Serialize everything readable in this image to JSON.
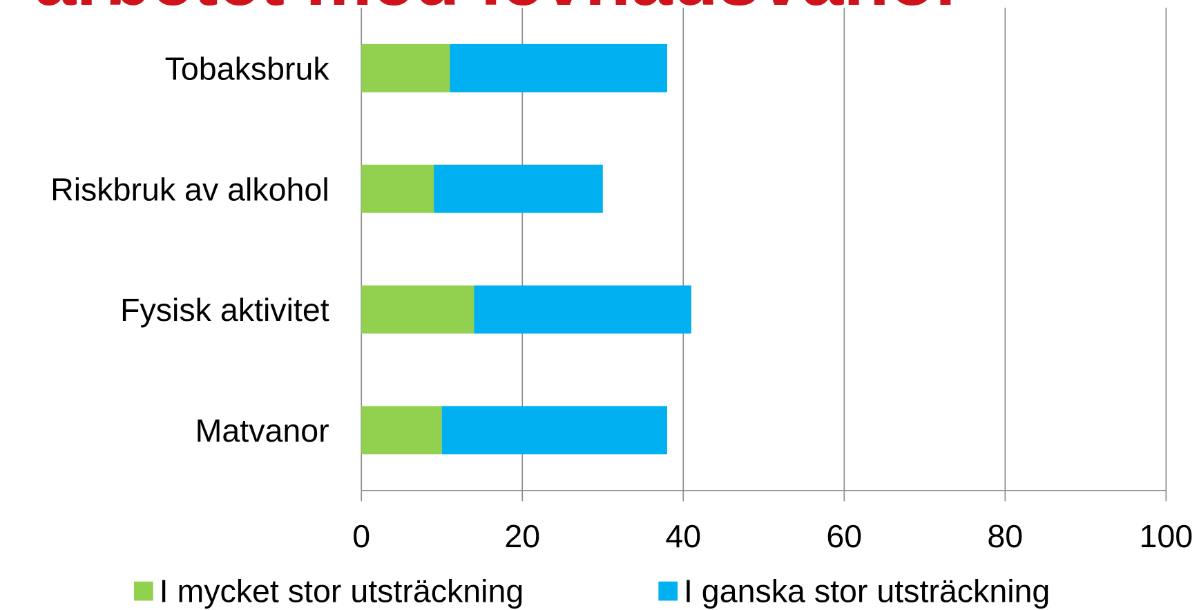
{
  "chart_data": {
    "type": "stacked-bar-horizontal",
    "title": "arbetet med levnadsvanor",
    "categories": [
      "Tobaksbruk",
      "Riskbruk av alkohol",
      "Fysisk aktivitet",
      "Matvanor"
    ],
    "series": [
      {
        "name": "I mycket stor utsträckning",
        "color": "#92d050",
        "values": [
          11,
          9,
          14,
          10
        ]
      },
      {
        "name": "I ganska stor utsträckning",
        "color": "#00b0f0",
        "values": [
          27,
          21,
          27,
          28
        ]
      }
    ],
    "xlim": [
      0,
      100
    ],
    "xticks": [
      0,
      20,
      40,
      60,
      80,
      100
    ],
    "grid": true,
    "legend": "bottom"
  }
}
